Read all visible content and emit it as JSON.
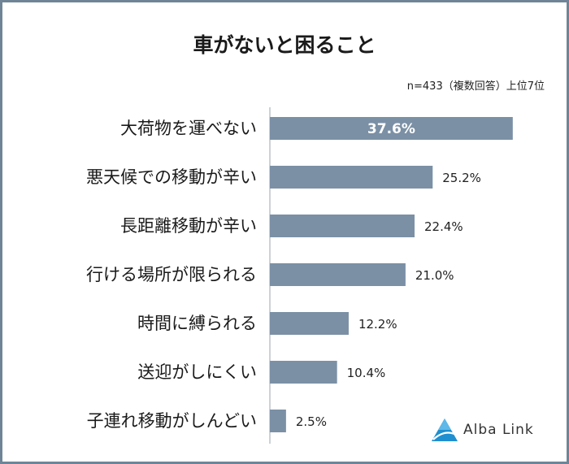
{
  "title": "車がないと困ること",
  "note": "n=433（複数回答）上位7位",
  "brand": "Alba Link",
  "colors": {
    "bar": "#7b90a5",
    "axis": "#9aa4ae",
    "border": "#6f8597"
  },
  "chart_data": {
    "type": "bar",
    "orientation": "horizontal",
    "title": "車がないと困ること",
    "categories": [
      "大荷物を運べない",
      "悪天候での移動が辛い",
      "長距離移動が辛い",
      "行ける場所が限られる",
      "時間に縛られる",
      "送迎がしにくい",
      "子連れ移動がしんどい"
    ],
    "values": [
      37.6,
      25.2,
      22.4,
      21.0,
      12.2,
      10.4,
      2.5
    ],
    "value_labels": [
      "37.6%",
      "25.2%",
      "22.4%",
      "21.0%",
      "12.2%",
      "10.4%",
      "2.5%"
    ],
    "unit": "%",
    "xlim": [
      0,
      38
    ],
    "grid": false,
    "legend": "none"
  }
}
